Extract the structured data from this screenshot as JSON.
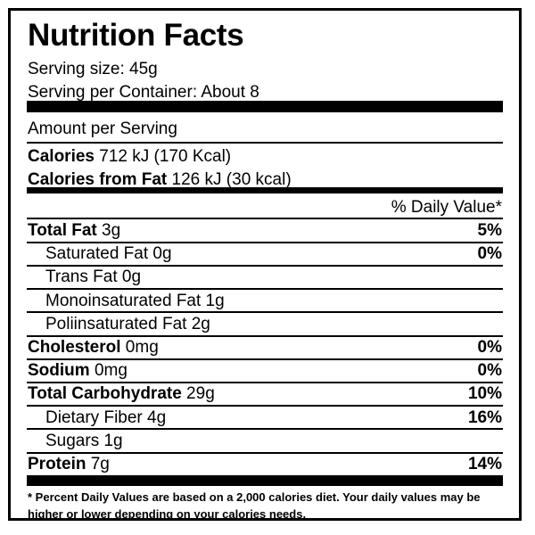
{
  "title": "Nutrition Facts",
  "serving_size": "Serving size: 45g",
  "servings_per_container": "Serving per Container: About 8",
  "amount_per_serving": "Amount per Serving",
  "calories": {
    "label": "Calories",
    "value": " 712 kJ (170 Kcal)"
  },
  "calories_from_fat": {
    "label": "Calories from Fat",
    "value": " 126 kJ (30 kcal)"
  },
  "daily_value_header": "% Daily Value*",
  "nutrients": [
    {
      "name": "Total Fat",
      "amount": " 3g",
      "pct": "5%"
    },
    {
      "name": "Saturated Fat 0g",
      "amount": "",
      "pct": "0%"
    },
    {
      "name": "Trans Fat 0g",
      "amount": "",
      "pct": ""
    },
    {
      "name": "Monoinsaturated Fat 1g",
      "amount": "",
      "pct": ""
    },
    {
      "name": "Poliinsaturated Fat 2g",
      "amount": "",
      "pct": ""
    },
    {
      "name": "Cholesterol",
      "amount": " 0mg",
      "pct": "0%"
    },
    {
      "name": "Sodium",
      "amount": " 0mg",
      "pct": "0%"
    },
    {
      "name": "Total Carbohydrate",
      "amount": " 29g",
      "pct": "10%"
    },
    {
      "name": "Dietary Fiber 4g",
      "amount": "",
      "pct": "16%"
    },
    {
      "name": "Sugars 1g",
      "amount": "",
      "pct": ""
    },
    {
      "name": "Protein",
      "amount": " 7g",
      "pct": "14%"
    }
  ],
  "footnote": "* Percent Daily Values are based on a 2,000 calories diet. Your daily values may be higher or lower depending on your calories needs."
}
